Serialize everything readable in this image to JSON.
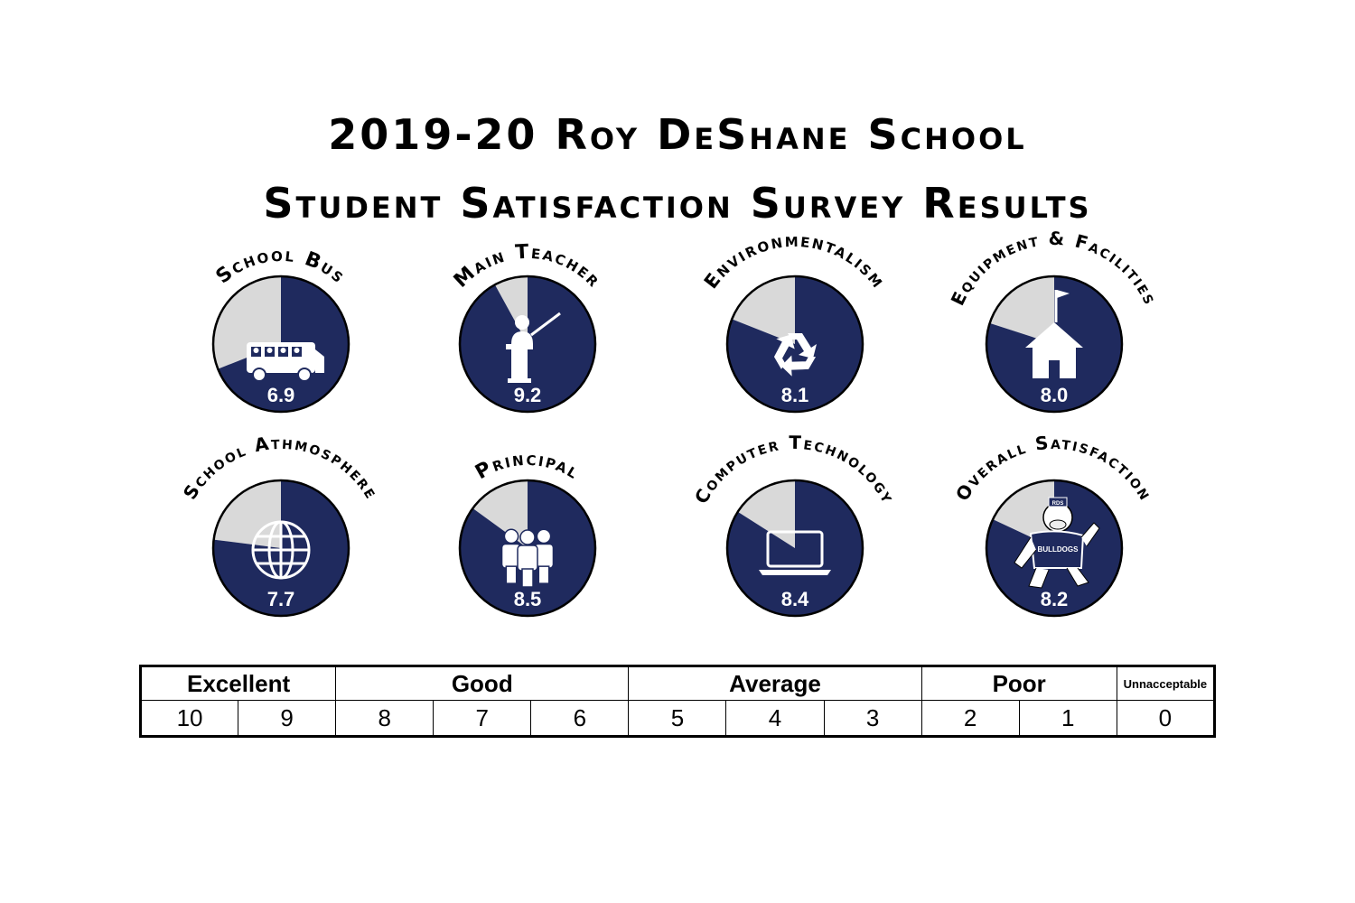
{
  "header": {
    "title_line1": "2019-20 Roy DeShane School",
    "title_line2": "Student Satisfaction Survey Results"
  },
  "colors": {
    "filled": "#1f2a5e",
    "remainder": "#d9d9d9",
    "outline": "#000000",
    "value_text": "#ffffff"
  },
  "chart_data": {
    "type": "pie",
    "scale_max": 10,
    "items": [
      {
        "label": "School Bus",
        "value": 6.9,
        "icon": "bus-icon"
      },
      {
        "label": "Main Teacher",
        "value": 9.2,
        "icon": "teacher-icon"
      },
      {
        "label": "Environmentalism",
        "value": 8.1,
        "icon": "recycle-icon"
      },
      {
        "label": "Equipment & Facilities",
        "value": 8.0,
        "icon": "schoolhouse-icon"
      },
      {
        "label": "School Athmosphere",
        "value": 7.7,
        "icon": "globe-icon"
      },
      {
        "label": "Principal",
        "value": 8.5,
        "icon": "people-icon"
      },
      {
        "label": "Computer Technology",
        "value": 8.4,
        "icon": "laptop-icon"
      },
      {
        "label": "Overall Satisfaction",
        "value": 8.2,
        "icon": "bulldog-mascot-icon",
        "mascot_text": "BULLDOGS",
        "mascot_hat_text": "RDS"
      }
    ]
  },
  "rating_scale": {
    "bands": [
      {
        "label": "Excellent",
        "span": 2
      },
      {
        "label": "Good",
        "span": 3
      },
      {
        "label": "Average",
        "span": 3
      },
      {
        "label": "Poor",
        "span": 2
      },
      {
        "label": "Unnacceptable",
        "span": 1
      }
    ],
    "scores": [
      "10",
      "9",
      "8",
      "7",
      "6",
      "5",
      "4",
      "3",
      "2",
      "1",
      "0"
    ]
  }
}
